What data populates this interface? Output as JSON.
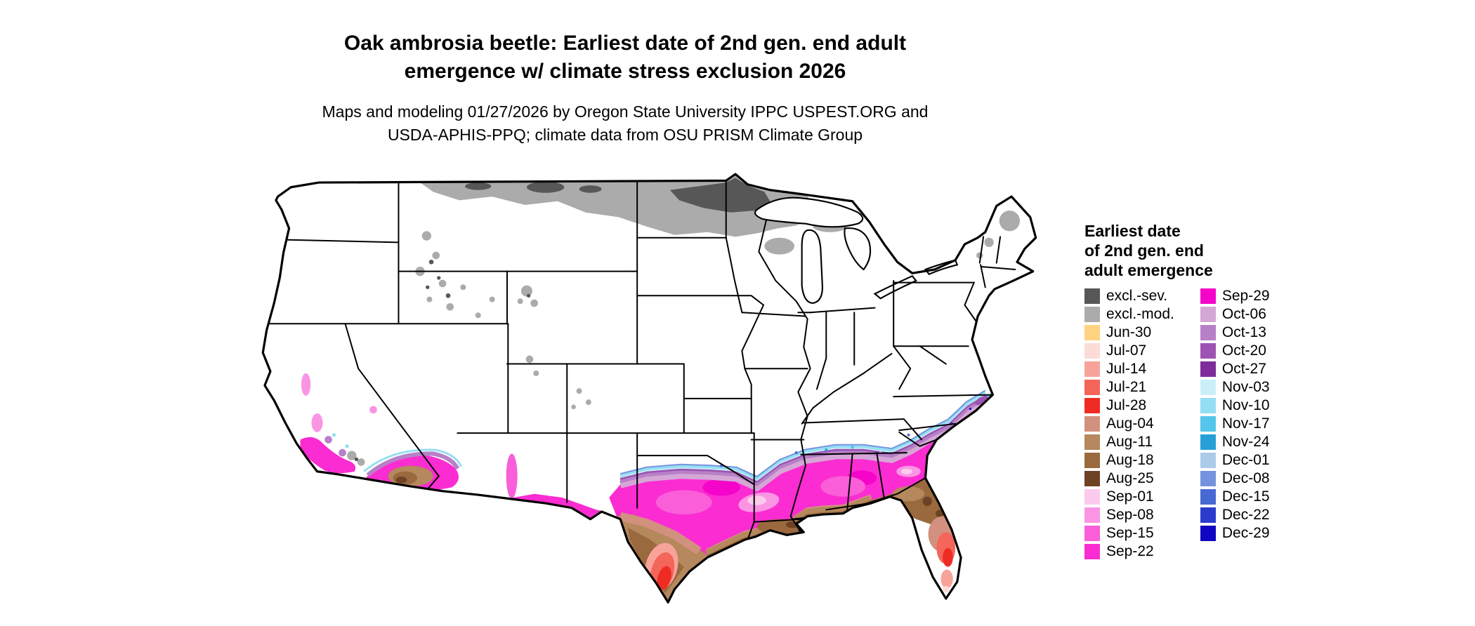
{
  "title": {
    "line1": "Oak ambrosia beetle: Earliest date of 2nd gen. end adult",
    "line2": "emergence w/ climate stress exclusion 2026"
  },
  "subtitle": {
    "line1": "Maps and modeling 01/27/2026 by Oregon State University IPPC USPEST.ORG and",
    "line2": "USDA-APHIS-PPQ; climate data from OSU PRISM Climate Group"
  },
  "legend": {
    "title_lines": [
      "Earliest date",
      "of 2nd gen. end",
      "adult emergence"
    ],
    "column1": [
      {
        "label": "excl.-sev.",
        "color": "excl_sev"
      },
      {
        "label": "excl.-mod.",
        "color": "excl_mod"
      },
      {
        "label": "Jun-30",
        "color": "jun30"
      },
      {
        "label": "Jul-07",
        "color": "jul07"
      },
      {
        "label": "Jul-14",
        "color": "jul14"
      },
      {
        "label": "Jul-21",
        "color": "jul21"
      },
      {
        "label": "Jul-28",
        "color": "jul28"
      },
      {
        "label": "Aug-04",
        "color": "aug04"
      },
      {
        "label": "Aug-11",
        "color": "aug11"
      },
      {
        "label": "Aug-18",
        "color": "aug18"
      },
      {
        "label": "Aug-25",
        "color": "aug25"
      },
      {
        "label": "Sep-01",
        "color": "sep01"
      },
      {
        "label": "Sep-08",
        "color": "sep08"
      },
      {
        "label": "Sep-15",
        "color": "sep15"
      },
      {
        "label": "Sep-22",
        "color": "sep22"
      }
    ],
    "column2": [
      {
        "label": "Sep-29",
        "color": "sep29"
      },
      {
        "label": "Oct-06",
        "color": "oct06"
      },
      {
        "label": "Oct-13",
        "color": "oct13"
      },
      {
        "label": "Oct-20",
        "color": "oct20"
      },
      {
        "label": "Oct-27",
        "color": "oct27"
      },
      {
        "label": "Nov-03",
        "color": "nov03"
      },
      {
        "label": "Nov-10",
        "color": "nov10"
      },
      {
        "label": "Nov-17",
        "color": "nov17"
      },
      {
        "label": "Nov-24",
        "color": "nov24"
      },
      {
        "label": "Dec-01",
        "color": "dec01"
      },
      {
        "label": "Dec-08",
        "color": "dec08"
      },
      {
        "label": "Dec-15",
        "color": "dec15"
      },
      {
        "label": "Dec-22",
        "color": "dec22"
      },
      {
        "label": "Dec-29",
        "color": "dec29"
      }
    ]
  },
  "palette": {
    "land": "#ffffff",
    "border": "#000000",
    "excl_sev": "#575757",
    "excl_mod": "#ababab",
    "jun30": "#ffd37f",
    "jul07": "#fbdcd7",
    "jul14": "#f8a39a",
    "jul21": "#f4655a",
    "jul28": "#ee2c24",
    "aug04": "#d2917f",
    "aug11": "#b5885d",
    "aug18": "#9a6a3e",
    "aug25": "#6e4224",
    "sep01": "#fccaed",
    "sep08": "#fa95e4",
    "sep15": "#fa5ed9",
    "sep22": "#fb2cd1",
    "sep29": "#f504c9",
    "oct06": "#d5a7d6",
    "oct13": "#b780c7",
    "oct20": "#9d53b4",
    "oct27": "#7e2c9b",
    "nov03": "#caeff9",
    "nov10": "#94def3",
    "nov17": "#53c6ea",
    "nov24": "#27a0d7",
    "dec01": "#accae9",
    "dec08": "#7393de",
    "dec15": "#4769d3",
    "dec22": "#2a3bce",
    "dec29": "#0f05c3"
  },
  "map": {
    "kind": "Contiguous United States choropleth map",
    "land_color": "#ffffff",
    "border_color": "#000000"
  }
}
